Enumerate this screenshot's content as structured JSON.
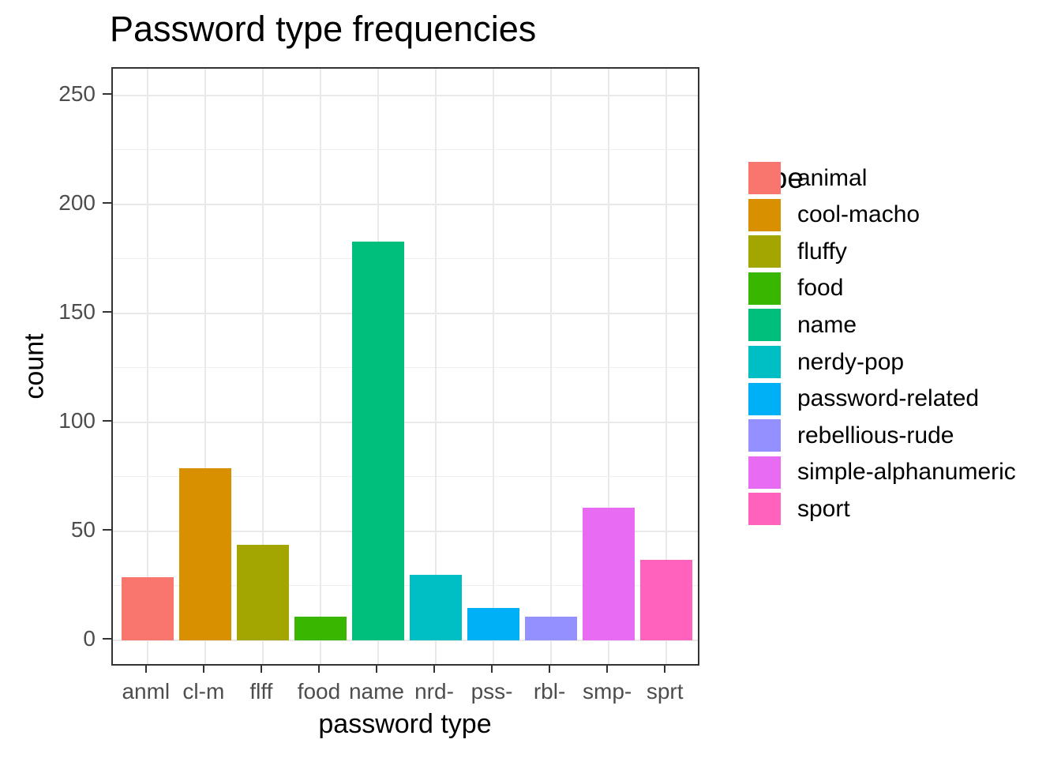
{
  "title": "Password type frequencies",
  "y_axis": {
    "label": "count",
    "tick_labels": [
      "0",
      "50",
      "100",
      "150",
      "200",
      "250"
    ]
  },
  "x_axis": {
    "label": "password type",
    "tick_labels": [
      "anml",
      "cl-m",
      "flff",
      "food",
      "name",
      "nrd-",
      "pss-",
      "rbl-",
      "smp-",
      "sprt"
    ]
  },
  "legend": {
    "title": "type",
    "entries": [
      {
        "label": "animal",
        "color": "#F8766D"
      },
      {
        "label": "cool-macho",
        "color": "#D89000"
      },
      {
        "label": "fluffy",
        "color": "#A3A500"
      },
      {
        "label": "food",
        "color": "#39B600"
      },
      {
        "label": "name",
        "color": "#00BF7D"
      },
      {
        "label": "nerdy-pop",
        "color": "#00BFC4"
      },
      {
        "label": "password-related",
        "color": "#00B0F6"
      },
      {
        "label": "rebellious-rude",
        "color": "#9590FF"
      },
      {
        "label": "simple-alphanumeric",
        "color": "#E76BF3"
      },
      {
        "label": "sport",
        "color": "#FF62BC"
      }
    ]
  },
  "chart_data": {
    "type": "bar",
    "title": "Password type frequencies",
    "xlabel": "password type",
    "ylabel": "count",
    "categories": [
      "anml",
      "cl-m",
      "flff",
      "food",
      "name",
      "nrd-",
      "pss-",
      "rbl-",
      "smp-",
      "sprt"
    ],
    "series_full_names": [
      "animal",
      "cool-macho",
      "fluffy",
      "food",
      "name",
      "nerdy-pop",
      "password-related",
      "rebellious-rude",
      "simple-alphanumeric",
      "sport"
    ],
    "values": [
      29,
      79,
      44,
      11,
      183,
      30,
      15,
      11,
      61,
      37
    ],
    "colors": [
      "#F8766D",
      "#D89000",
      "#A3A500",
      "#39B600",
      "#00BF7D",
      "#00BFC4",
      "#00B0F6",
      "#9590FF",
      "#E76BF3",
      "#FF62BC"
    ],
    "ylim": [
      0,
      250
    ],
    "y_major_breaks": [
      0,
      50,
      100,
      150,
      200,
      250
    ],
    "y_minor_breaks": [
      25,
      75,
      125,
      175,
      225
    ],
    "axis_expansion_mult": 0.05,
    "grid": true,
    "legend_position": "right",
    "panel_border_color": "#333333",
    "gridline_color": "#e9e9e9",
    "tick_text_color": "#4d4d4d"
  }
}
